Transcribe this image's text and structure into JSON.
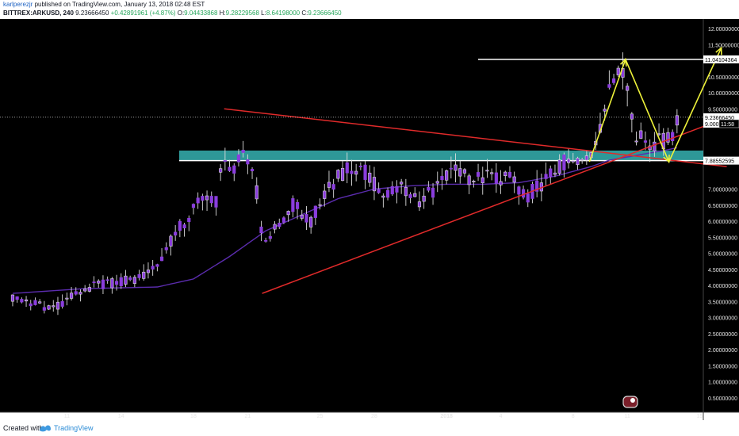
{
  "header": {
    "author": "karlperezjr",
    "published_text": "published on TradingView.com, January 13, 2018 02:48 EST",
    "symbol": "BITTREX:ARKUSD, 240",
    "last": "9.23666450",
    "change": "+0.42891961 (+4.87%)",
    "o_label": "O:",
    "o": "9.04433868",
    "h_label": "H:",
    "h": "9.28229568",
    "l_label": "L:",
    "l": "8.64198000",
    "c_label": "C:",
    "c": "9.23666450"
  },
  "footer": {
    "created_with": "Created with",
    "brand": "TradingView"
  },
  "colors": {
    "background": "#000000",
    "candle": "#8a3ddd",
    "wick": "#dcdcdc",
    "ma": "#5b2cae",
    "triangle": "#e02a2a",
    "zone": "#36b3b3",
    "projection": "#eef23a",
    "hline": "#ffffff"
  },
  "chart_data": {
    "type": "candlestick",
    "ylim": [
      0,
      12
    ],
    "y_ticks": [
      "12.00000000",
      "11.50000000",
      "10.50000000",
      "10.00000000",
      "9.50000000",
      "9.00000000",
      "7.00000000",
      "6.50000000",
      "6.00000000",
      "5.50000000",
      "5.00000000",
      "4.50000000",
      "4.00000000",
      "3.50000000",
      "3.00000000",
      "2.50000000",
      "2.00000000",
      "1.50000000",
      "1.00000000",
      "0.50000000"
    ],
    "x_ticks": [
      {
        "label": "11",
        "day": 11
      },
      {
        "label": "14",
        "day": 14
      },
      {
        "label": "18",
        "day": 18
      },
      {
        "label": "21",
        "day": 21
      },
      {
        "label": "25",
        "day": 25
      },
      {
        "label": "28",
        "day": 28
      },
      {
        "label": "2018",
        "day": 32
      },
      {
        "label": "4",
        "day": 35
      },
      {
        "label": "8",
        "day": 39
      },
      {
        "label": "11",
        "day": 42
      },
      {
        "label": "15",
        "day": 46
      },
      {
        "label": "18",
        "day": 49
      },
      {
        "label": "22",
        "day": 53
      }
    ],
    "price_labels": {
      "resistance": "11.04104364",
      "last": "9.23666450",
      "last_alt": "9.000",
      "countdown": "11:58",
      "support": "7.88552595"
    },
    "resistance_level": 11.04,
    "last_price": 9.237,
    "support_level": 7.886,
    "support_zone": [
      7.9,
      8.2
    ],
    "triangle_upper": {
      "from": [
        19.7,
        9.5
      ],
      "to": [
        47.5,
        7.7
      ]
    },
    "triangle_lower": {
      "from": [
        21.8,
        3.75
      ],
      "to": [
        56.5,
        8.95
      ]
    },
    "projection": [
      [
        39.9,
        7.85
      ],
      [
        41.9,
        11.04
      ],
      [
        44.3,
        7.85
      ],
      [
        47.2,
        11.4
      ]
    ],
    "candle_anchors": [
      [
        8.0,
        3.6
      ],
      [
        9.0,
        3.5
      ],
      [
        10.0,
        3.25
      ],
      [
        11.0,
        3.55
      ],
      [
        12.0,
        3.85
      ],
      [
        13.0,
        4.05
      ],
      [
        14.0,
        4.1
      ],
      [
        15.0,
        4.2
      ],
      [
        16.0,
        4.7
      ],
      [
        17.0,
        5.6
      ],
      [
        18.0,
        6.4
      ],
      [
        18.8,
        6.9
      ],
      [
        19.3,
        6.6
      ],
      [
        19.7,
        8.2
      ],
      [
        20.2,
        7.4
      ],
      [
        20.8,
        8.3
      ],
      [
        21.4,
        7.4
      ],
      [
        21.8,
        5.4
      ],
      [
        22.5,
        5.7
      ],
      [
        23.5,
        6.5
      ],
      [
        24.5,
        6.0
      ],
      [
        25.5,
        7.0
      ],
      [
        26.5,
        7.7
      ],
      [
        27.5,
        7.5
      ],
      [
        28.5,
        6.8
      ],
      [
        29.5,
        7.1
      ],
      [
        30.5,
        6.6
      ],
      [
        31.5,
        7.1
      ],
      [
        32.5,
        7.6
      ],
      [
        33.5,
        7.3
      ],
      [
        34.5,
        7.4
      ],
      [
        35.5,
        7.3
      ],
      [
        36.5,
        6.8
      ],
      [
        37.5,
        7.3
      ],
      [
        38.5,
        7.8
      ],
      [
        39.3,
        7.7
      ],
      [
        39.9,
        7.9
      ],
      [
        40.6,
        9.2
      ],
      [
        41.3,
        10.6
      ],
      [
        41.9,
        10.9
      ],
      [
        42.4,
        8.4
      ],
      [
        42.8,
        8.7
      ],
      [
        43.4,
        8.4
      ],
      [
        44.0,
        8.5
      ],
      [
        44.6,
        8.8
      ],
      [
        44.9,
        9.2
      ]
    ],
    "ma_anchors": [
      [
        8.0,
        3.75
      ],
      [
        12.0,
        3.9
      ],
      [
        16.0,
        3.95
      ],
      [
        18.0,
        4.2
      ],
      [
        20.0,
        4.9
      ],
      [
        22.0,
        5.7
      ],
      [
        24.0,
        6.2
      ],
      [
        26.0,
        6.7
      ],
      [
        28.0,
        7.0
      ],
      [
        30.0,
        7.1
      ],
      [
        32.0,
        7.15
      ],
      [
        34.0,
        7.15
      ],
      [
        36.0,
        7.2
      ],
      [
        38.0,
        7.4
      ],
      [
        40.0,
        7.7
      ],
      [
        41.0,
        7.9
      ],
      [
        42.0,
        8.0
      ],
      [
        43.0,
        8.1
      ],
      [
        44.0,
        8.2
      ],
      [
        44.9,
        8.3
      ]
    ]
  }
}
